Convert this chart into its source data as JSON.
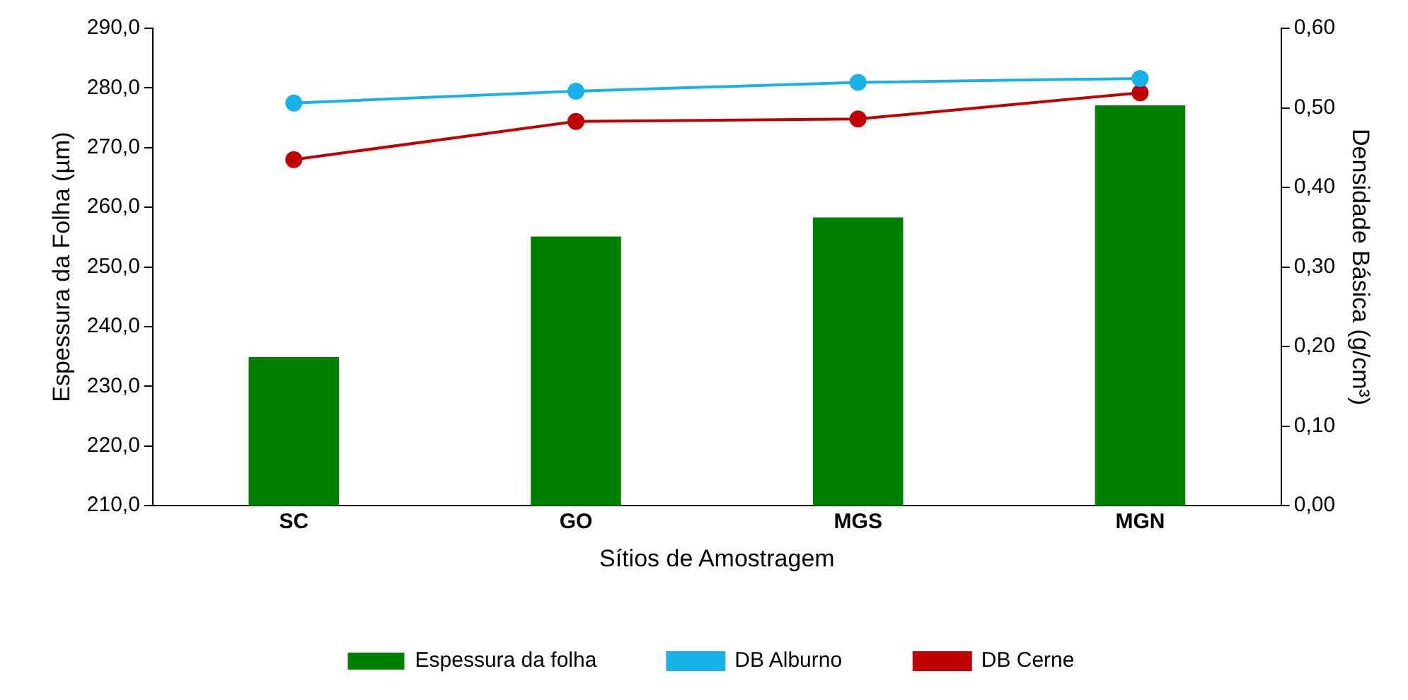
{
  "chart_data": {
    "type": "bar",
    "categories": [
      "SC",
      "GO",
      "MGS",
      "MGN"
    ],
    "xlabel": "Sítios de Amostragem",
    "ylabel": "Espessura da Folha (µm)",
    "y2label": "Densidade Básica (g/cm³)",
    "ylim": [
      210,
      290
    ],
    "yticks": [
      {
        "value": 210,
        "label": "210,0"
      },
      {
        "value": 220,
        "label": "220,0"
      },
      {
        "value": 230,
        "label": "230,0"
      },
      {
        "value": 240,
        "label": "240,0"
      },
      {
        "value": 250,
        "label": "250,0"
      },
      {
        "value": 260,
        "label": "260,0"
      },
      {
        "value": 270,
        "label": "270,0"
      },
      {
        "value": 280,
        "label": "280,0"
      },
      {
        "value": 290,
        "label": "290,0"
      }
    ],
    "y2lim": [
      0,
      0.6
    ],
    "y2ticks": [
      {
        "value": 0,
        "label": "0,00"
      },
      {
        "value": 0.1,
        "label": "0,10"
      },
      {
        "value": 0.2,
        "label": "0,20"
      },
      {
        "value": 0.3,
        "label": "0,30"
      },
      {
        "value": 0.4,
        "label": "0,40"
      },
      {
        "value": 0.5,
        "label": "0,50"
      },
      {
        "value": 0.6,
        "label": "0,60"
      }
    ],
    "grid": false,
    "legend": "bottom",
    "marker": "circle",
    "series": [
      {
        "name": "Espessura da folha",
        "color": "#008000",
        "values": [
          234.9,
          255.1,
          258.3,
          277.1
        ]
      },
      {
        "name": "DB Alburno",
        "type": "line",
        "axis": "y2",
        "color": "#1ab0e8",
        "values": [
          0.506,
          0.521,
          0.532,
          0.537
        ]
      },
      {
        "name": "DB Cerne",
        "type": "line",
        "axis": "y2",
        "color": "#c00000",
        "values": [
          0.435,
          0.483,
          0.486,
          0.519
        ]
      }
    ]
  }
}
